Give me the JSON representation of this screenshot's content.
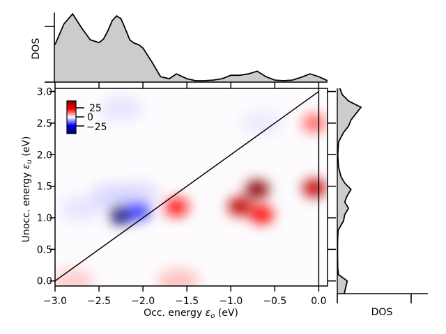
{
  "chart_data": [
    {
      "panel": "main",
      "type": "heatmap",
      "xlabel": "Occ. energy ε_o (eV)",
      "ylabel": "Unocc. energy ε_u (eV)",
      "xlim": [
        -3.0,
        0.1
      ],
      "ylim": [
        -0.08,
        3.05
      ],
      "xticks": [
        -3.0,
        -2.5,
        -2.0,
        -1.5,
        -1.0,
        -0.5,
        0.0
      ],
      "xtick_labels": [
        "−3.0",
        "−2.5",
        "−2.0",
        "−1.5",
        "−1.0",
        "−0.5",
        "0.0"
      ],
      "yticks": [
        0.0,
        0.5,
        1.0,
        1.5,
        2.0,
        2.5,
        3.0
      ],
      "ytick_labels": [
        "0.0",
        "0.5",
        "1.0",
        "1.5",
        "2.0",
        "2.5",
        "3.0"
      ],
      "colormap": "seismic",
      "colorbar": {
        "ticks": [
          25,
          0,
          -25
        ],
        "tick_labels": [
          "25",
          "0",
          "−25"
        ],
        "vmin": -35,
        "vmax": 35,
        "position": "upper-left"
      },
      "diagonal_line": [
        [
          -3.0,
          0.0
        ],
        [
          0.0,
          3.0
        ]
      ],
      "vertical_line_x": 0.0,
      "blobs": [
        {
          "x": -2.25,
          "y": 1.05,
          "value": -35
        },
        {
          "x": -2.05,
          "y": 1.12,
          "value": -22
        },
        {
          "x": -2.35,
          "y": 1.35,
          "value": -6
        },
        {
          "x": -2.05,
          "y": 1.38,
          "value": -5
        },
        {
          "x": -2.7,
          "y": 1.15,
          "value": -4
        },
        {
          "x": -2.25,
          "y": 2.73,
          "value": -4
        },
        {
          "x": -0.65,
          "y": 2.5,
          "value": -3
        },
        {
          "x": -1.62,
          "y": 1.17,
          "value": 23
        },
        {
          "x": -0.9,
          "y": 1.18,
          "value": 30
        },
        {
          "x": -0.7,
          "y": 1.45,
          "value": 35
        },
        {
          "x": -0.65,
          "y": 1.05,
          "value": 25
        },
        {
          "x": -0.05,
          "y": 1.47,
          "value": 30
        },
        {
          "x": -0.05,
          "y": 2.5,
          "value": 15
        },
        {
          "x": -2.8,
          "y": 0.0,
          "value": 8
        },
        {
          "x": -1.6,
          "y": 0.0,
          "value": 10
        }
      ]
    },
    {
      "panel": "top",
      "type": "area",
      "ylabel": "DOS",
      "x": [
        -3.0,
        -2.9,
        -2.8,
        -2.7,
        -2.6,
        -2.5,
        -2.45,
        -2.4,
        -2.35,
        -2.3,
        -2.25,
        -2.2,
        -2.15,
        -2.1,
        -2.05,
        -2.0,
        -1.9,
        -1.8,
        -1.7,
        -1.62,
        -1.5,
        -1.4,
        -1.3,
        -1.2,
        -1.1,
        -1.0,
        -0.9,
        -0.8,
        -0.7,
        -0.6,
        -0.5,
        -0.4,
        -0.3,
        -0.2,
        -0.1,
        0.0,
        0.1
      ],
      "y": [
        0.55,
        0.85,
        1.0,
        0.8,
        0.62,
        0.58,
        0.63,
        0.75,
        0.9,
        0.97,
        0.93,
        0.78,
        0.62,
        0.57,
        0.55,
        0.5,
        0.3,
        0.08,
        0.05,
        0.12,
        0.05,
        0.02,
        0.02,
        0.03,
        0.05,
        0.1,
        0.1,
        0.12,
        0.16,
        0.08,
        0.03,
        0.02,
        0.03,
        0.07,
        0.12,
        0.08,
        0.02
      ]
    },
    {
      "panel": "right",
      "type": "area",
      "xlabel": "DOS",
      "y": [
        -0.08,
        0.0,
        0.1,
        0.2,
        0.4,
        0.6,
        0.8,
        0.95,
        1.05,
        1.15,
        1.25,
        1.35,
        1.45,
        1.55,
        1.65,
        1.8,
        2.0,
        2.2,
        2.35,
        2.45,
        2.55,
        2.65,
        2.75,
        2.85,
        2.95,
        3.05
      ],
      "x": [
        0.28,
        0.4,
        0.05,
        0.02,
        0.01,
        0.01,
        0.03,
        0.25,
        0.3,
        0.45,
        0.3,
        0.4,
        0.55,
        0.3,
        0.15,
        0.05,
        0.02,
        0.05,
        0.25,
        0.45,
        0.55,
        0.75,
        0.95,
        0.45,
        0.2,
        0.1
      ]
    }
  ]
}
